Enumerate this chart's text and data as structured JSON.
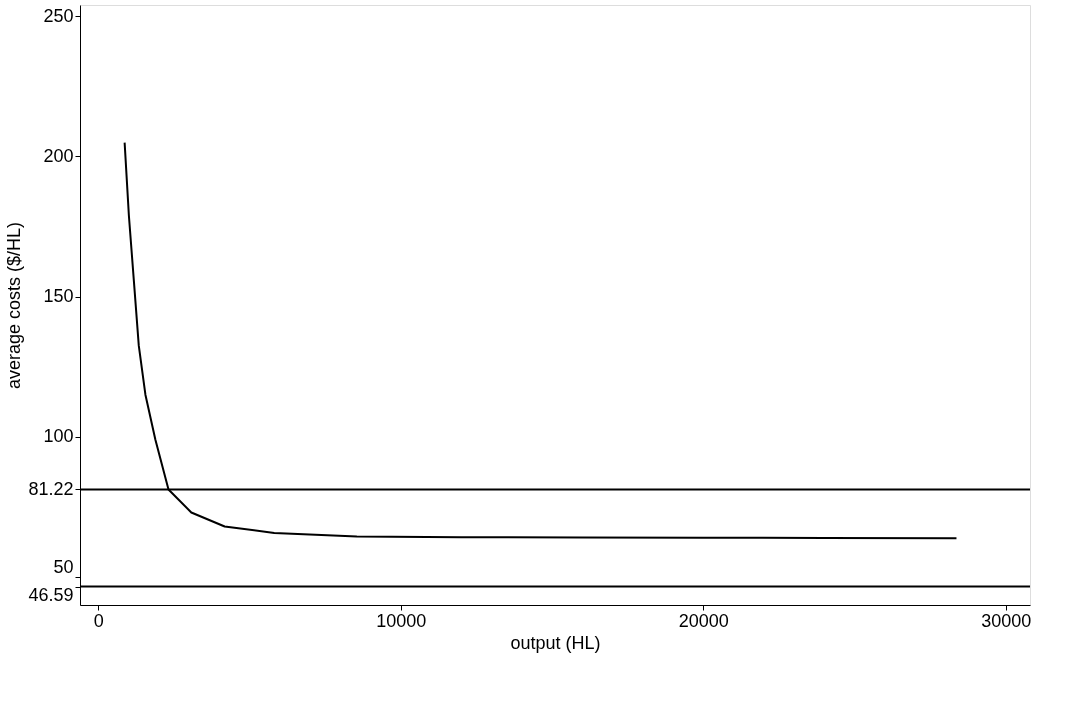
{
  "chart_data": {
    "type": "line",
    "xlabel": "output (HL)",
    "ylabel": "average costs ($/HL)",
    "xlim": [
      -600,
      30800
    ],
    "xticks": [
      0,
      10000,
      20000,
      30000
    ],
    "ylim": [
      40,
      254
    ],
    "yticks": [
      46.59,
      50,
      81.22,
      100,
      150,
      200,
      250
    ],
    "grid": false,
    "marker": "none",
    "line_style": "solid",
    "series": [
      {
        "color": "#000000",
        "x": [
          875,
          1015,
          1180,
          1343,
          1562,
          1890,
          2325,
          3079,
          4182,
          5820,
          8550,
          12000,
          16000,
          20000,
          24000,
          28370
        ],
        "values": [
          204.9,
          179,
          155.7,
          132.5,
          115,
          99,
          81.2,
          73,
          68,
          65.7,
          64.4,
          64.2,
          64.1,
          64,
          63.9,
          63.8
        ]
      }
    ],
    "ref_lines": [
      {
        "axis": "y",
        "value": 81.22,
        "color": "#000000",
        "line_style": "solid"
      },
      {
        "axis": "y",
        "value": 46.59,
        "color": "#000000",
        "line_style": "solid"
      }
    ]
  }
}
